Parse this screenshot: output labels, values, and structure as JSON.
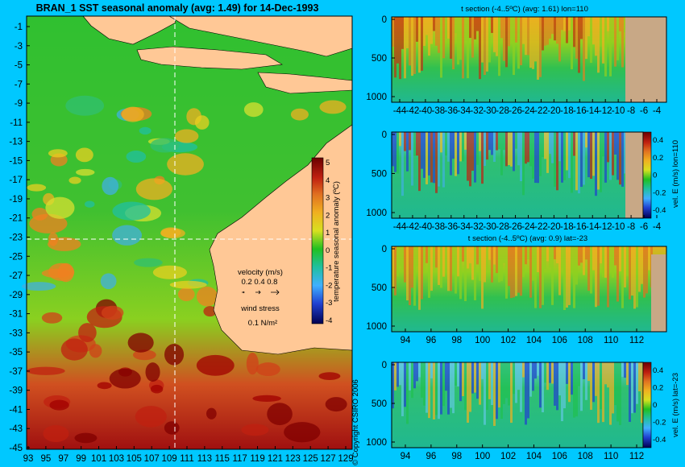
{
  "chart_data": [
    {
      "type": "heatmap",
      "title": "BRAN_1  SST seasonal anomaly  (avg: 1.49)  for 14-Dec-1993",
      "x_ticks": [
        "93",
        "95",
        "97",
        "99",
        "101",
        "103",
        "105",
        "107",
        "109",
        "111",
        "113",
        "115",
        "117",
        "119",
        "121",
        "123",
        "125",
        "127",
        "129"
      ],
      "y_ticks": [
        "-1",
        "-3",
        "-5",
        "-7",
        "-9",
        "-11",
        "-13",
        "-15",
        "-17",
        "-19",
        "-21",
        "-23",
        "-25",
        "-27",
        "-29",
        "-31",
        "-33",
        "-35",
        "-37",
        "-39",
        "-41",
        "-43",
        "-45"
      ],
      "xlim": [
        93,
        130
      ],
      "ylim": [
        -45,
        0
      ],
      "colorbar": {
        "label": "temperature seasonal anomaly (ºC)",
        "ticks": [
          "5",
          "4",
          "3",
          "2",
          "1",
          "0",
          "-1",
          "-2",
          "-3",
          "-4"
        ],
        "range": [
          -4,
          5
        ]
      },
      "legend": {
        "velocity_label": "velocity (m/s)",
        "velocity_values": "0.2 0.4 0.8",
        "wind_label": "wind stress",
        "wind_value": "0.1 N/m²"
      },
      "crosshair": {
        "lon": 110,
        "lat": -23
      },
      "copyright": "© Copyright CSIRO 2006"
    },
    {
      "type": "heatmap",
      "title": "t section (-4..5ºC) (avg: 1.61) lon=110",
      "x_ticks": [
        "-44",
        "-42",
        "-40",
        "-38",
        "-36",
        "-34",
        "-32",
        "-30",
        "-28",
        "-26",
        "-24",
        "-22",
        "-20",
        "-18",
        "-16",
        "-14",
        "-12",
        "-10",
        "-8",
        "-6",
        "-4"
      ],
      "y_ticks": [
        "0",
        "500",
        "1000"
      ],
      "ylim": [
        1050,
        0
      ]
    },
    {
      "type": "heatmap",
      "title": "",
      "x_ticks": [
        "-44",
        "-42",
        "-40",
        "-38",
        "-36",
        "-34",
        "-32",
        "-30",
        "-28",
        "-26",
        "-24",
        "-22",
        "-20",
        "-18",
        "-16",
        "-14",
        "-12",
        "-10",
        "-8",
        "-6",
        "-4"
      ],
      "y_ticks": [
        "0",
        "500",
        "1000"
      ],
      "ylim": [
        1050,
        0
      ],
      "colorbar": {
        "label": "vel. E (m/s) lon=110",
        "ticks": [
          "0.4",
          "0.2",
          "0",
          "-0.2",
          "-0.4"
        ],
        "range": [
          -0.45,
          0.45
        ]
      }
    },
    {
      "type": "heatmap",
      "title": "t section (-4..5ºC) (avg: 0.9) lat=-23",
      "x_ticks": [
        "94",
        "96",
        "98",
        "100",
        "102",
        "104",
        "106",
        "108",
        "110",
        "112"
      ],
      "y_ticks": [
        "0",
        "500",
        "1000"
      ],
      "ylim": [
        1050,
        0
      ]
    },
    {
      "type": "heatmap",
      "title": "",
      "x_ticks": [
        "94",
        "96",
        "98",
        "100",
        "102",
        "104",
        "106",
        "108",
        "110",
        "112"
      ],
      "y_ticks": [
        "0",
        "500",
        "1000"
      ],
      "ylim": [
        1050,
        0
      ],
      "colorbar": {
        "label": "vel. E (m/s) lat=-23",
        "ticks": [
          "0.4",
          "0.2",
          "0",
          "-0.2",
          "-0.4"
        ],
        "range": [
          -0.45,
          0.45
        ]
      }
    }
  ]
}
